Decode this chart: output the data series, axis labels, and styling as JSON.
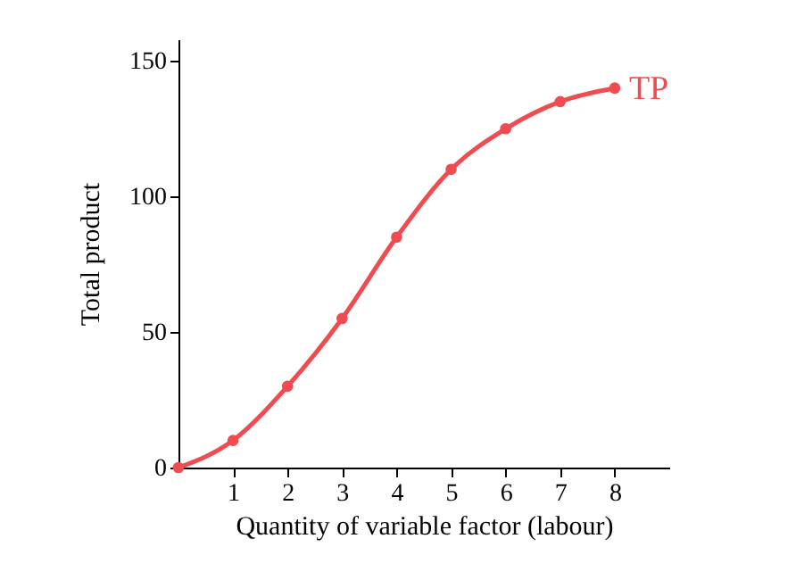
{
  "chart_data": {
    "type": "line",
    "xlabel": "Quantity of variable factor (labour)",
    "ylabel": "Total product",
    "x": [
      0,
      1,
      2,
      3,
      4,
      5,
      6,
      7,
      8
    ],
    "series": [
      {
        "name": "TP",
        "color": "#ee4c50",
        "values": [
          0,
          10,
          30,
          55,
          85,
          110,
          125,
          135,
          140
        ]
      }
    ],
    "xlim": [
      0,
      9
    ],
    "ylim": [
      0,
      158
    ],
    "xticks": [
      1,
      2,
      3,
      4,
      5,
      6,
      7,
      8
    ],
    "yticks": [
      0,
      50,
      100,
      150
    ],
    "marker": "circle",
    "grid": false
  }
}
